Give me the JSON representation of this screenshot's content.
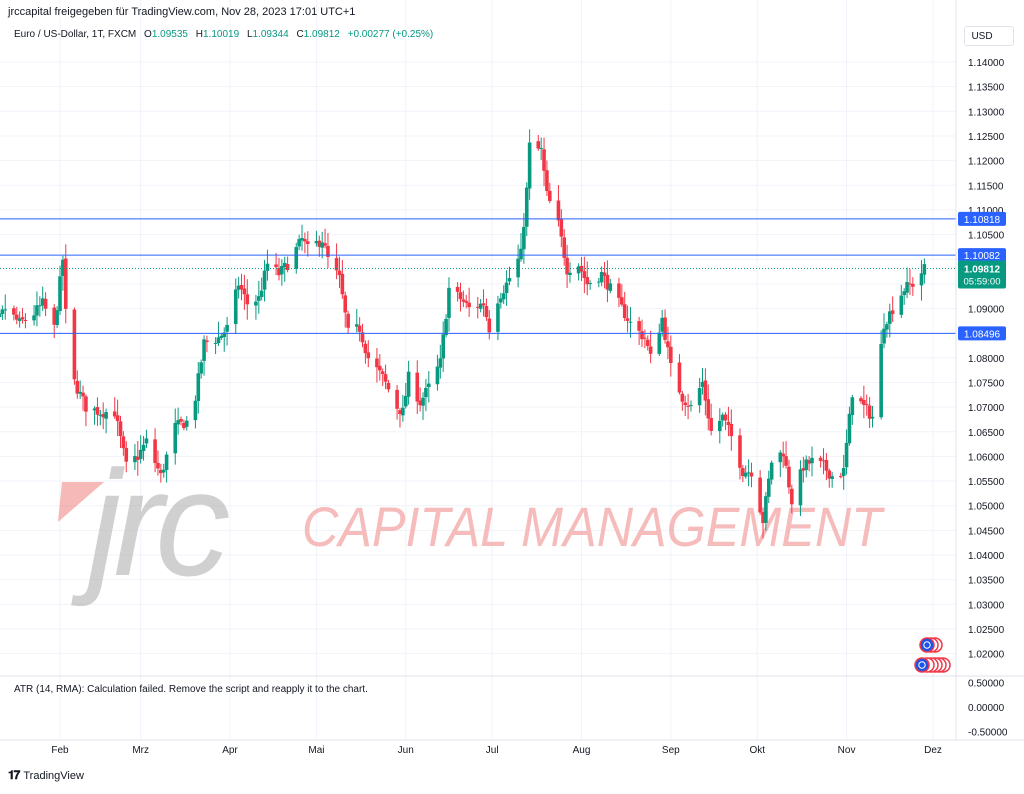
{
  "attribution": "jrccapital freigegeben für TradingView.com, Nov 28, 2023 17:01 UTC+1",
  "legend": {
    "symbol": "Euro / US-Dollar, 1T, FXCM",
    "open_label": "O",
    "open": "1.09535",
    "high_label": "H",
    "high": "1.10019",
    "low_label": "L",
    "low": "1.09344",
    "close_label": "C",
    "close": "1.09812",
    "change": "+0.00277 (+0.25%)"
  },
  "currency_button": "USD",
  "indicator_message": "ATR (14, RMA): Calculation failed. Remove the script and reapply it to the chart.",
  "footer": {
    "brand": "TradingView",
    "icon": "tradingview-logo-icon"
  },
  "watermark": {
    "logo_text": "jrc",
    "text": "CAPITAL MANAGEMENT",
    "colors": {
      "logo": "#a9a9a9",
      "accent": "#f07e7e",
      "text": "#f3a6a6"
    }
  },
  "colors": {
    "up": "#089981",
    "down": "#f23645",
    "level": "#2962ff",
    "grid": "#f0f3fa",
    "axis_text": "#131722",
    "countdown_bg": "#089981"
  },
  "chart_data": {
    "type": "candlestick",
    "instrument": "Euro / US-Dollar",
    "timeframe": "1T",
    "price_axis": {
      "ticks": [
        "1.14000",
        "1.13500",
        "1.13000",
        "1.12500",
        "1.12000",
        "1.11500",
        "1.11000",
        "1.10500",
        "1.10000",
        "1.09500",
        "1.09000",
        "1.08500",
        "1.08000",
        "1.07500",
        "1.07000",
        "1.06500",
        "1.06000",
        "1.05500",
        "1.05000",
        "1.04500",
        "1.04000",
        "1.03500",
        "1.03000",
        "1.02500",
        "1.02000"
      ],
      "ylim": [
        1.0195,
        1.1445
      ]
    },
    "time_axis": {
      "labels": [
        "Feb",
        "Mrz",
        "Apr",
        "Mai",
        "Jun",
        "Jul",
        "Aug",
        "Sep",
        "Okt",
        "Nov",
        "Dez"
      ]
    },
    "horizontal_levels": [
      {
        "price": 1.10818,
        "label": "1.10818"
      },
      {
        "price": 1.10082,
        "label": "1.10082"
      },
      {
        "price": 1.08496,
        "label": "1.08496"
      }
    ],
    "last_price": {
      "price": 1.09812,
      "label": "1.09812",
      "countdown": "05:59:00"
    },
    "close_path": [
      [
        "2023-01-02",
        1.084
      ],
      [
        "2023-01-05",
        1.079
      ],
      [
        "2023-01-09",
        1.086
      ],
      [
        "2023-01-13",
        1.09
      ],
      [
        "2023-01-18",
        1.087
      ],
      [
        "2023-01-23",
        1.089
      ],
      [
        "2023-01-26",
        1.091
      ],
      [
        "2023-01-30",
        1.086
      ],
      [
        "2023-02-02",
        1.1
      ],
      [
        "2023-02-03",
        1.089
      ],
      [
        "2023-02-06",
        1.075
      ],
      [
        "2023-02-10",
        1.07
      ],
      [
        "2023-02-15",
        1.069
      ],
      [
        "2023-02-20",
        1.069
      ],
      [
        "2023-02-24",
        1.058
      ],
      [
        "2023-02-28",
        1.06
      ],
      [
        "2023-03-03",
        1.063
      ],
      [
        "2023-03-08",
        1.056
      ],
      [
        "2023-03-13",
        1.066
      ],
      [
        "2023-03-17",
        1.067
      ],
      [
        "2023-03-20",
        1.072
      ],
      [
        "2023-03-23",
        1.083
      ],
      [
        "2023-03-28",
        1.084
      ],
      [
        "2023-03-31",
        1.086
      ],
      [
        "2023-04-04",
        1.095
      ],
      [
        "2023-04-07",
        1.091
      ],
      [
        "2023-04-11",
        1.092
      ],
      [
        "2023-04-14",
        1.099
      ],
      [
        "2023-04-18",
        1.097
      ],
      [
        "2023-04-21",
        1.099
      ],
      [
        "2023-04-26",
        1.104
      ],
      [
        "2023-04-28",
        1.102
      ],
      [
        "2023-05-03",
        1.104
      ],
      [
        "2023-05-05",
        1.1
      ],
      [
        "2023-05-09",
        1.096
      ],
      [
        "2023-05-12",
        1.085
      ],
      [
        "2023-05-16",
        1.086
      ],
      [
        "2023-05-19",
        1.08
      ],
      [
        "2023-05-24",
        1.076
      ],
      [
        "2023-05-29",
        1.07
      ],
      [
        "2023-05-31",
        1.069
      ],
      [
        "2023-06-02",
        1.076
      ],
      [
        "2023-06-06",
        1.071
      ],
      [
        "2023-06-09",
        1.074
      ],
      [
        "2023-06-13",
        1.079
      ],
      [
        "2023-06-16",
        1.094
      ],
      [
        "2023-06-20",
        1.092
      ],
      [
        "2023-06-23",
        1.09
      ],
      [
        "2023-06-28",
        1.091
      ],
      [
        "2023-06-30",
        1.086
      ],
      [
        "2023-07-03",
        1.092
      ],
      [
        "2023-07-06",
        1.095
      ],
      [
        "2023-07-11",
        1.101
      ],
      [
        "2023-07-13",
        1.114
      ],
      [
        "2023-07-14",
        1.123
      ],
      [
        "2023-07-18",
        1.122
      ],
      [
        "2023-07-20",
        1.113
      ],
      [
        "2023-07-24",
        1.107
      ],
      [
        "2023-07-27",
        1.098
      ],
      [
        "2023-07-31",
        1.099
      ],
      [
        "2023-08-03",
        1.095
      ],
      [
        "2023-08-08",
        1.097
      ],
      [
        "2023-08-11",
        1.094
      ],
      [
        "2023-08-15",
        1.09
      ],
      [
        "2023-08-18",
        1.087
      ],
      [
        "2023-08-23",
        1.084
      ],
      [
        "2023-08-25",
        1.08
      ],
      [
        "2023-08-29",
        1.088
      ],
      [
        "2023-09-01",
        1.078
      ],
      [
        "2023-09-05",
        1.072
      ],
      [
        "2023-09-08",
        1.07
      ],
      [
        "2023-09-12",
        1.075
      ],
      [
        "2023-09-15",
        1.065
      ],
      [
        "2023-09-19",
        1.068
      ],
      [
        "2023-09-22",
        1.064
      ],
      [
        "2023-09-26",
        1.057
      ],
      [
        "2023-09-29",
        1.057
      ],
      [
        "2023-10-03",
        1.047
      ],
      [
        "2023-10-06",
        1.059
      ],
      [
        "2023-10-10",
        1.061
      ],
      [
        "2023-10-13",
        1.051
      ],
      [
        "2023-10-17",
        1.058
      ],
      [
        "2023-10-20",
        1.059
      ],
      [
        "2023-10-24",
        1.058
      ],
      [
        "2023-10-27",
        1.056
      ],
      [
        "2023-10-31",
        1.057
      ],
      [
        "2023-11-03",
        1.073
      ],
      [
        "2023-11-07",
        1.07
      ],
      [
        "2023-11-10",
        1.068
      ],
      [
        "2023-11-14",
        1.087
      ],
      [
        "2023-11-17",
        1.09
      ],
      [
        "2023-11-21",
        1.094
      ],
      [
        "2023-11-24",
        1.095
      ],
      [
        "2023-11-28",
        1.0981
      ]
    ],
    "indicator_pane": {
      "name": "ATR (14, RMA)",
      "ticks": [
        "0.50000",
        "0.00000",
        "-0.50000"
      ]
    }
  }
}
